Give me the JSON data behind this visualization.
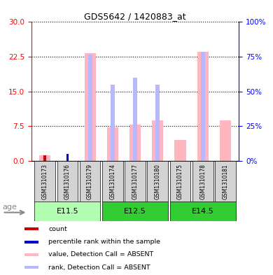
{
  "title": "GDS5642 / 1420883_at",
  "samples": [
    "GSM1310173",
    "GSM1310176",
    "GSM1310179",
    "GSM1310174",
    "GSM1310177",
    "GSM1310180",
    "GSM1310175",
    "GSM1310178",
    "GSM1310181"
  ],
  "groups": [
    {
      "label": "E11.5",
      "indices": [
        0,
        1,
        2
      ]
    },
    {
      "label": "E12.5",
      "indices": [
        3,
        4,
        5
      ]
    },
    {
      "label": "E14.5",
      "indices": [
        6,
        7,
        8
      ]
    }
  ],
  "group_colors": [
    "#b2ffb2",
    "#32cd32",
    "#32cd32"
  ],
  "absent_value": [
    1.2,
    0.0,
    23.3,
    7.2,
    7.8,
    8.8,
    4.5,
    23.5,
    8.8
  ],
  "absent_rank": [
    0.0,
    0.0,
    23.0,
    16.5,
    18.0,
    16.5,
    0.0,
    23.5,
    0.0
  ],
  "present_value": [
    1.2,
    0.0,
    0.0,
    0.0,
    0.0,
    0.0,
    0.0,
    0.0,
    0.0
  ],
  "present_rank": [
    0.0,
    1.5,
    0.0,
    0.0,
    0.0,
    0.0,
    0.0,
    0.0,
    0.0
  ],
  "ylim_left": [
    0,
    30
  ],
  "ylim_right": [
    0,
    100
  ],
  "yticks_left": [
    0,
    7.5,
    15,
    22.5,
    30
  ],
  "yticks_right": [
    0,
    25,
    50,
    75,
    100
  ],
  "ylabel_left_color": "#ff0000",
  "ylabel_right_color": "#0000ff",
  "absent_bar_color": "#ffb6c1",
  "absent_rank_color": "#b8b8ff",
  "present_bar_color": "#cc0000",
  "present_rank_color": "#0000cc",
  "legend_items": [
    {
      "color": "#cc0000",
      "label": "count"
    },
    {
      "color": "#0000cc",
      "label": "percentile rank within the sample"
    },
    {
      "color": "#ffb6c1",
      "label": "value, Detection Call = ABSENT"
    },
    {
      "color": "#b8b8ff",
      "label": "rank, Detection Call = ABSENT"
    }
  ],
  "age_label": "age",
  "sample_bg_color": "#d3d3d3"
}
